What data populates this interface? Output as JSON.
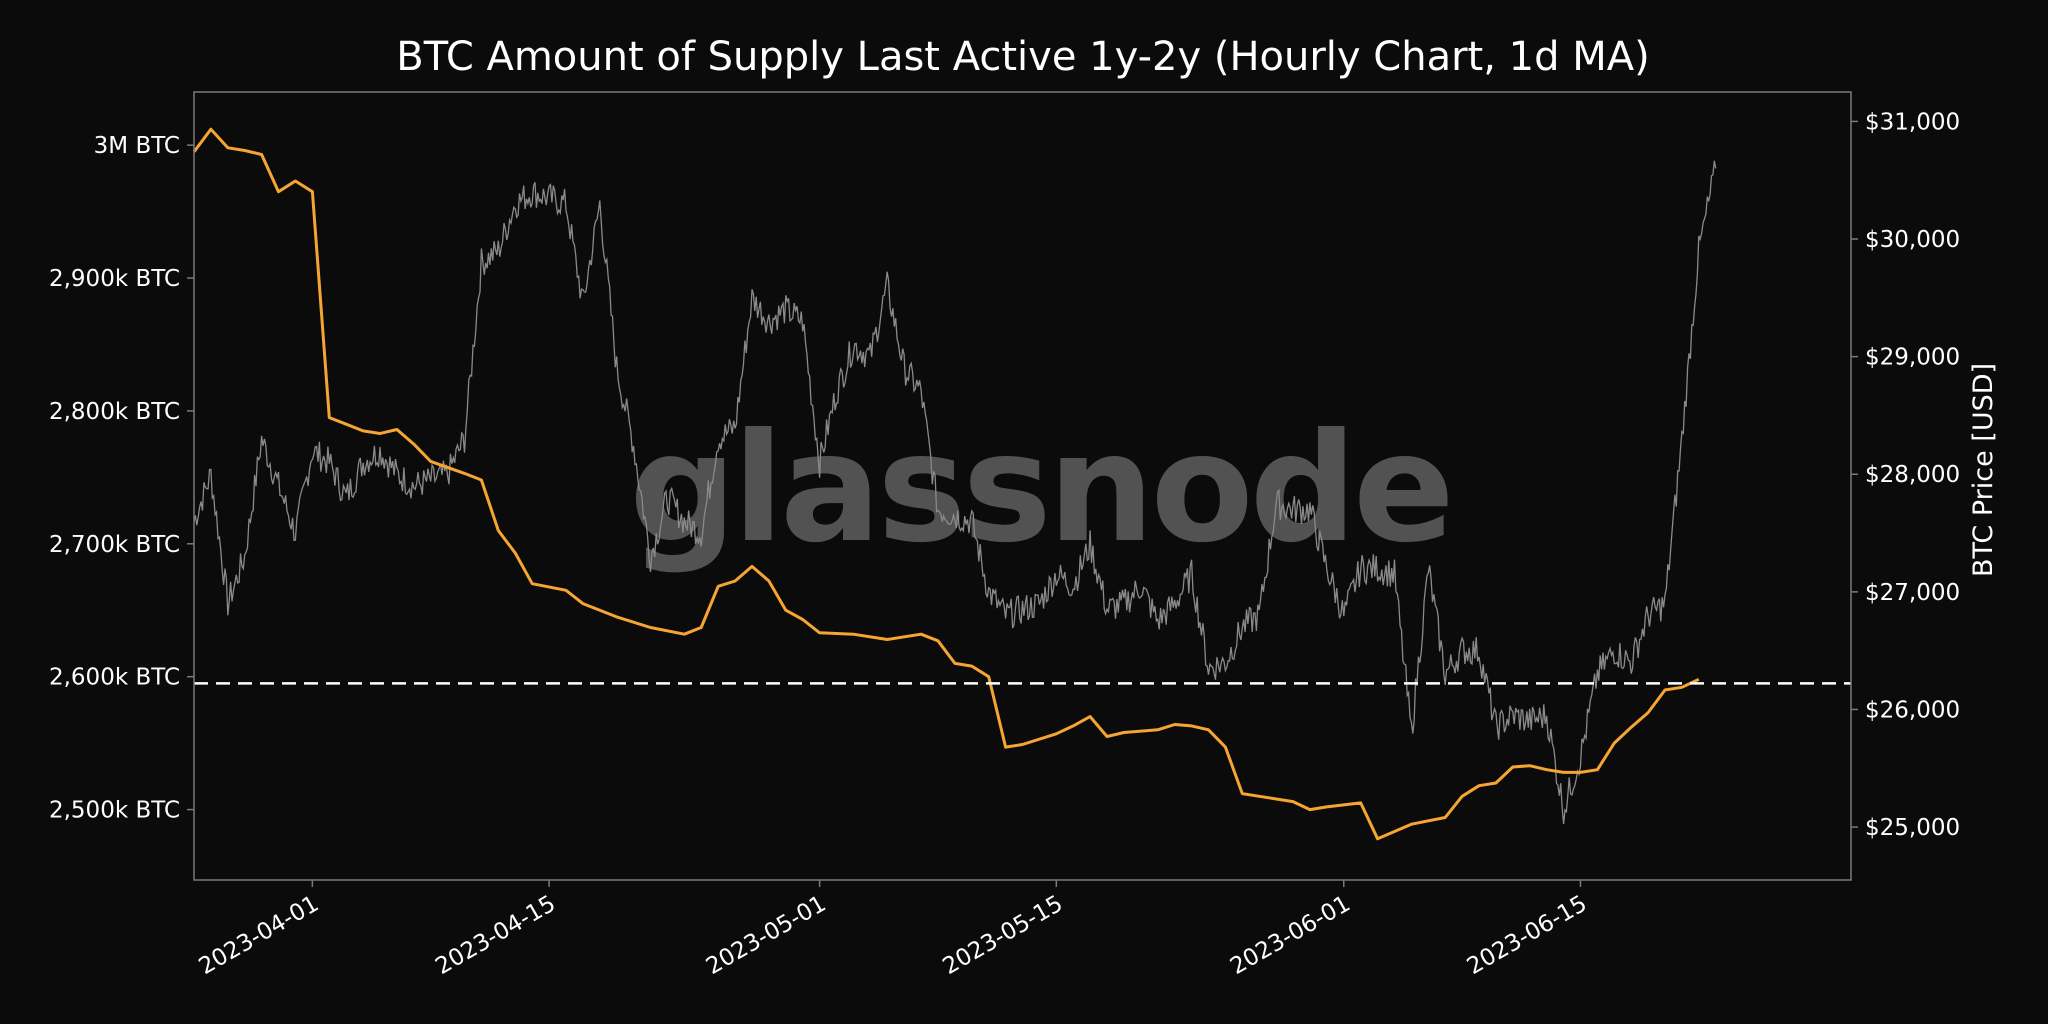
{
  "chart_data": {
    "type": "line",
    "title": "BTC Amount of Supply Last Active 1y-2y (Hourly Chart, 1d MA)",
    "watermark": "glassnode",
    "y_left_ticks": [
      "2,500k BTC",
      "2,600k BTC",
      "2,700k BTC",
      "2,800k BTC",
      "2,900k BTC",
      "3M BTC"
    ],
    "y_left_tick_values": [
      2500000,
      2600000,
      2700000,
      2800000,
      2900000,
      3000000
    ],
    "y_left_range": [
      2447000,
      3040000
    ],
    "y_right_label": "BTC Price [USD]",
    "y_right_ticks": [
      "$25,000",
      "$26,000",
      "$27,000",
      "$28,000",
      "$29,000",
      "$30,000",
      "$31,000"
    ],
    "y_right_tick_values": [
      25000,
      26000,
      27000,
      28000,
      29000,
      30000,
      31000
    ],
    "y_right_range": [
      24550,
      31250
    ],
    "x_ticks": [
      "2023-04-01",
      "2023-04-15",
      "2023-05-01",
      "2023-05-15",
      "2023-06-01",
      "2023-06-15"
    ],
    "x_tick_dates": [
      "2023-04-01",
      "2023-04-15",
      "2023-05-01",
      "2023-05-15",
      "2023-06-01",
      "2023-06-15"
    ],
    "x_range": [
      "2023-03-25",
      "2023-07-01"
    ],
    "grid": false,
    "reference_line": {
      "value": 2595000,
      "style": "dashed",
      "color": "#ffffff"
    },
    "colors": {
      "supply": "#f7a532",
      "price": "#8a8a8a",
      "background": "#0b0b0b",
      "frame": "#7a7a7a"
    },
    "series": [
      {
        "axis": "left",
        "points": [
          [
            "2023-03-25",
            2995000
          ],
          [
            "2023-03-26",
            3012000
          ],
          [
            "2023-03-27",
            2998000
          ],
          [
            "2023-03-28",
            2996000
          ],
          [
            "2023-03-29",
            2993000
          ],
          [
            "2023-03-30",
            2965000
          ],
          [
            "2023-03-31",
            2973000
          ],
          [
            "2023-04-01",
            2965000
          ],
          [
            "2023-04-02",
            2795000
          ],
          [
            "2023-04-03",
            2790000
          ],
          [
            "2023-04-04",
            2785000
          ],
          [
            "2023-04-05",
            2783000
          ],
          [
            "2023-04-06",
            2786000
          ],
          [
            "2023-04-07",
            2775000
          ],
          [
            "2023-04-08",
            2762000
          ],
          [
            "2023-04-10",
            2753000
          ],
          [
            "2023-04-11",
            2748000
          ],
          [
            "2023-04-12",
            2710000
          ],
          [
            "2023-04-13",
            2693000
          ],
          [
            "2023-04-14",
            2670000
          ],
          [
            "2023-04-16",
            2665000
          ],
          [
            "2023-04-17",
            2655000
          ],
          [
            "2023-04-19",
            2645000
          ],
          [
            "2023-04-21",
            2637000
          ],
          [
            "2023-04-23",
            2632000
          ],
          [
            "2023-04-24",
            2637000
          ],
          [
            "2023-04-25",
            2668000
          ],
          [
            "2023-04-26",
            2672000
          ],
          [
            "2023-04-27",
            2683000
          ],
          [
            "2023-04-28",
            2672000
          ],
          [
            "2023-04-29",
            2650000
          ],
          [
            "2023-04-30",
            2643000
          ],
          [
            "2023-05-01",
            2633000
          ],
          [
            "2023-05-03",
            2632000
          ],
          [
            "2023-05-05",
            2628000
          ],
          [
            "2023-05-07",
            2632000
          ],
          [
            "2023-05-08",
            2627000
          ],
          [
            "2023-05-09",
            2610000
          ],
          [
            "2023-05-10",
            2608000
          ],
          [
            "2023-05-11",
            2600000
          ],
          [
            "2023-05-12",
            2547000
          ],
          [
            "2023-05-13",
            2549000
          ],
          [
            "2023-05-15",
            2557000
          ],
          [
            "2023-05-16",
            2563000
          ],
          [
            "2023-05-17",
            2570000
          ],
          [
            "2023-05-18",
            2555000
          ],
          [
            "2023-05-19",
            2558000
          ],
          [
            "2023-05-21",
            2560000
          ],
          [
            "2023-05-22",
            2564000
          ],
          [
            "2023-05-23",
            2563000
          ],
          [
            "2023-05-24",
            2560000
          ],
          [
            "2023-05-25",
            2547000
          ],
          [
            "2023-05-26",
            2512000
          ],
          [
            "2023-05-27",
            2510000
          ],
          [
            "2023-05-29",
            2506000
          ],
          [
            "2023-05-30",
            2500000
          ],
          [
            "2023-05-31",
            2502000
          ],
          [
            "2023-06-02",
            2505000
          ],
          [
            "2023-06-03",
            2478000
          ],
          [
            "2023-06-05",
            2489000
          ],
          [
            "2023-06-07",
            2494000
          ],
          [
            "2023-06-08",
            2510000
          ],
          [
            "2023-06-09",
            2518000
          ],
          [
            "2023-06-10",
            2520000
          ],
          [
            "2023-06-11",
            2532000
          ],
          [
            "2023-06-12",
            2533000
          ],
          [
            "2023-06-13",
            2530000
          ],
          [
            "2023-06-14",
            2528000
          ],
          [
            "2023-06-15",
            2528000
          ],
          [
            "2023-06-16",
            2530000
          ],
          [
            "2023-06-17",
            2550000
          ],
          [
            "2023-06-18",
            2562000
          ],
          [
            "2023-06-19",
            2573000
          ],
          [
            "2023-06-20",
            2590000
          ],
          [
            "2023-06-21",
            2592000
          ],
          [
            "2023-06-22",
            2598000
          ]
        ]
      },
      {
        "axis": "right",
        "points": [
          [
            "2023-03-25",
            27600
          ],
          [
            "2023-03-26",
            28000
          ],
          [
            "2023-03-27",
            26900
          ],
          [
            "2023-03-28",
            27300
          ],
          [
            "2023-03-29",
            28300
          ],
          [
            "2023-03-30",
            27900
          ],
          [
            "2023-03-31",
            27500
          ],
          [
            "2023-04-01",
            28200
          ],
          [
            "2023-04-02",
            28100
          ],
          [
            "2023-04-03",
            27800
          ],
          [
            "2023-04-04",
            28100
          ],
          [
            "2023-04-05",
            28200
          ],
          [
            "2023-04-06",
            28000
          ],
          [
            "2023-04-07",
            27900
          ],
          [
            "2023-04-08",
            27950
          ],
          [
            "2023-04-09",
            28000
          ],
          [
            "2023-04-10",
            28300
          ],
          [
            "2023-04-11",
            29800
          ],
          [
            "2023-04-12",
            29900
          ],
          [
            "2023-04-13",
            30300
          ],
          [
            "2023-04-14",
            30400
          ],
          [
            "2023-04-15",
            30350
          ],
          [
            "2023-04-16",
            30300
          ],
          [
            "2023-04-17",
            29450
          ],
          [
            "2023-04-18",
            30300
          ],
          [
            "2023-04-19",
            28900
          ],
          [
            "2023-04-20",
            28250
          ],
          [
            "2023-04-21",
            27300
          ],
          [
            "2023-04-22",
            27800
          ],
          [
            "2023-04-23",
            27600
          ],
          [
            "2023-04-24",
            27500
          ],
          [
            "2023-04-25",
            28300
          ],
          [
            "2023-04-26",
            28400
          ],
          [
            "2023-04-27",
            29500
          ],
          [
            "2023-04-28",
            29300
          ],
          [
            "2023-04-29",
            29400
          ],
          [
            "2023-04-30",
            29300
          ],
          [
            "2023-05-01",
            28100
          ],
          [
            "2023-05-02",
            28700
          ],
          [
            "2023-05-03",
            29100
          ],
          [
            "2023-05-04",
            29000
          ],
          [
            "2023-05-05",
            29600
          ],
          [
            "2023-05-06",
            28900
          ],
          [
            "2023-05-07",
            28700
          ],
          [
            "2023-05-08",
            27700
          ],
          [
            "2023-05-09",
            27650
          ],
          [
            "2023-05-10",
            27600
          ],
          [
            "2023-05-11",
            27000
          ],
          [
            "2023-05-12",
            26800
          ],
          [
            "2023-05-13",
            26850
          ],
          [
            "2023-05-14",
            26900
          ],
          [
            "2023-05-15",
            27150
          ],
          [
            "2023-05-16",
            27050
          ],
          [
            "2023-05-17",
            27400
          ],
          [
            "2023-05-18",
            26850
          ],
          [
            "2023-05-19",
            26900
          ],
          [
            "2023-05-20",
            27050
          ],
          [
            "2023-05-21",
            26750
          ],
          [
            "2023-05-22",
            26900
          ],
          [
            "2023-05-23",
            27150
          ],
          [
            "2023-05-24",
            26350
          ],
          [
            "2023-05-25",
            26400
          ],
          [
            "2023-05-26",
            26700
          ],
          [
            "2023-05-27",
            26800
          ],
          [
            "2023-05-28",
            27750
          ],
          [
            "2023-05-29",
            27700
          ],
          [
            "2023-05-30",
            27700
          ],
          [
            "2023-05-31",
            27200
          ],
          [
            "2023-06-01",
            26800
          ],
          [
            "2023-06-02",
            27200
          ],
          [
            "2023-06-03",
            27200
          ],
          [
            "2023-06-04",
            27150
          ],
          [
            "2023-06-05",
            25800
          ],
          [
            "2023-06-06",
            27200
          ],
          [
            "2023-06-07",
            26300
          ],
          [
            "2023-06-08",
            26500
          ],
          [
            "2023-06-09",
            26500
          ],
          [
            "2023-06-10",
            25850
          ],
          [
            "2023-06-11",
            25950
          ],
          [
            "2023-06-12",
            25900
          ],
          [
            "2023-06-13",
            25950
          ],
          [
            "2023-06-14",
            25150
          ],
          [
            "2023-06-15",
            25600
          ],
          [
            "2023-06-16",
            26300
          ],
          [
            "2023-06-17",
            26500
          ],
          [
            "2023-06-18",
            26400
          ],
          [
            "2023-06-19",
            26800
          ],
          [
            "2023-06-20",
            26900
          ],
          [
            "2023-06-21",
            28300
          ],
          [
            "2023-06-22",
            29900
          ],
          [
            "2023-06-23",
            30600
          ]
        ]
      }
    ]
  }
}
